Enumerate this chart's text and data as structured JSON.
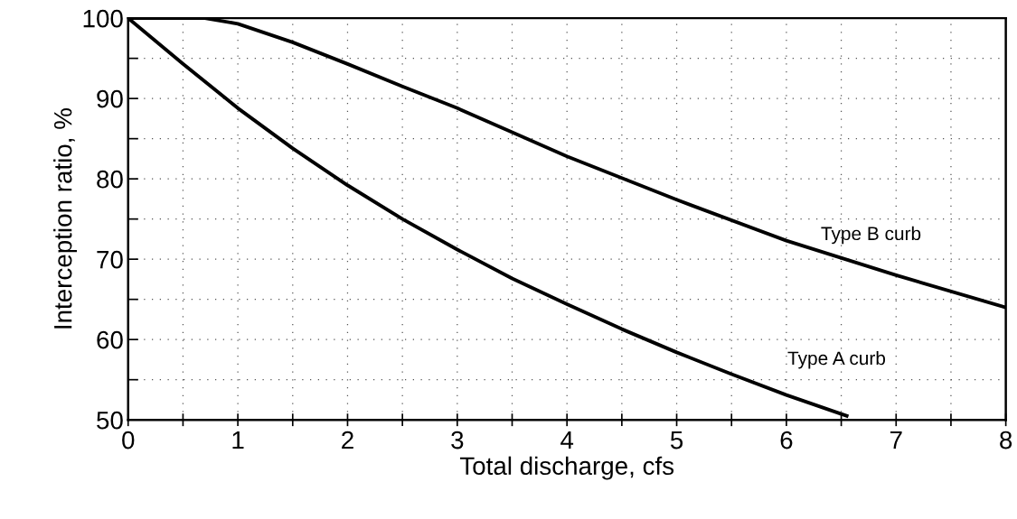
{
  "chart_data": {
    "type": "line",
    "xlabel": "Total discharge, cfs",
    "ylabel": "Interception ratio, %",
    "xlim": [
      0,
      8
    ],
    "ylim": [
      50,
      100
    ],
    "xticks": [
      0,
      {
        "value": 0.5,
        "label": null
      },
      1,
      {
        "value": 1.5,
        "label": null
      },
      2,
      {
        "value": 2.5,
        "label": null
      },
      3,
      {
        "value": 3.5,
        "label": null
      },
      4,
      {
        "value": 4.5,
        "label": null
      },
      5,
      {
        "value": 5.5,
        "label": null
      },
      6,
      {
        "value": 6.5,
        "label": null
      },
      7,
      {
        "value": 7.5,
        "label": null
      },
      8
    ],
    "yticks": [
      50,
      {
        "value": 55,
        "label": null
      },
      60,
      {
        "value": 65,
        "label": null
      },
      70,
      {
        "value": 75,
        "label": null
      },
      80,
      {
        "value": 85,
        "label": null
      },
      90,
      {
        "value": 95,
        "label": null
      },
      100
    ],
    "grid": true,
    "marker": "none",
    "line_style": "solid",
    "legend": false,
    "series": [
      {
        "name": "Type B curb",
        "color": "#000000",
        "x": [
          0,
          0.5,
          0.7,
          1,
          1.5,
          2,
          2.5,
          3,
          3.5,
          4,
          5,
          6,
          7,
          8
        ],
        "values": [
          100,
          100,
          100,
          99.3,
          97,
          94.3,
          91.5,
          88.8,
          85.8,
          82.8,
          77.4,
          72.3,
          68,
          64
        ]
      },
      {
        "name": "Type A curb",
        "color": "#000000",
        "x": [
          0,
          0.5,
          1,
          1.5,
          2,
          2.5,
          3,
          3.5,
          4,
          4.5,
          5,
          5.5,
          6,
          6.55
        ],
        "values": [
          100,
          94.3,
          88.8,
          83.8,
          79.2,
          75,
          71.2,
          67.6,
          64.4,
          61.3,
          58.4,
          55.7,
          53.1,
          50.5
        ]
      }
    ]
  }
}
